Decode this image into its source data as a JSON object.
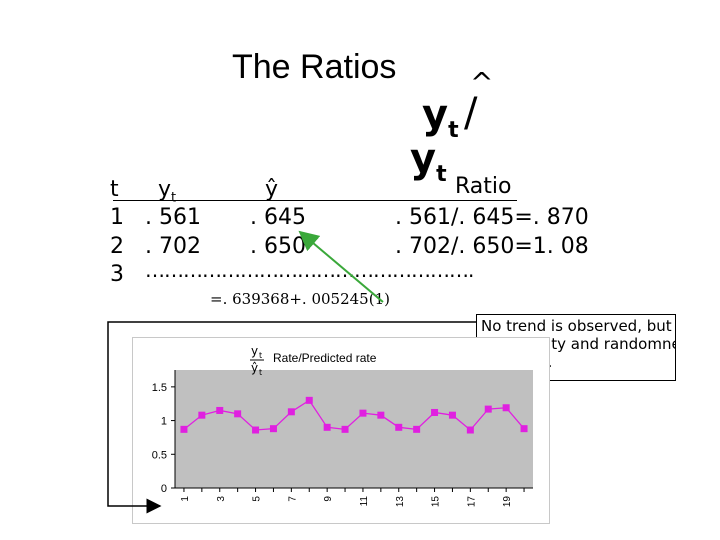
{
  "slide": {
    "title": "The Ratios",
    "ratio_symbol_caret": "^",
    "ratio_symbol_y1": "y",
    "ratio_symbol_t1": "t",
    "ratio_symbol_slash": "/",
    "ratio_symbol_y2": "y",
    "ratio_symbol_t2": "t",
    "ratio_label": "Ratio"
  },
  "table": {
    "headers": {
      "t": "t",
      "yt_base": "y",
      "yt_sub": "t",
      "yhat": "ŷ"
    },
    "rows": [
      {
        "t": "1",
        "yt": ". 561",
        "yhat": ". 645",
        "ratio": ". 561/. 645=. 870"
      },
      {
        "t": "2",
        "yt": ". 702",
        "yhat": ". 650",
        "ratio": ". 702/. 650=1. 08"
      },
      {
        "t": "3",
        "dots": "……………………………………………."
      }
    ]
  },
  "formula": "=. 639368+. 005245(1)",
  "note": {
    "line1": "No trend is observed, but",
    "line2": "seasonality and randomness",
    "line3": "still exist."
  },
  "chart_data": {
    "type": "line",
    "title": "Rate/Predicted rate",
    "title_symbol_y": "y",
    "title_symbol_t": "t",
    "title_symbol_yhat": "ŷ",
    "title_symbol_that": "t",
    "x": [
      1,
      2,
      3,
      4,
      5,
      6,
      7,
      8,
      9,
      10,
      11,
      12,
      13,
      14,
      15,
      16,
      17,
      18,
      19,
      20
    ],
    "xticks": [
      "1",
      "3",
      "5",
      "7",
      "9",
      "11",
      "13",
      "15",
      "17",
      "19"
    ],
    "yticks": [
      "0",
      "0.5",
      "1",
      "1.5"
    ],
    "ylim": [
      0,
      1.75
    ],
    "series": [
      {
        "values": [
          0.87,
          1.08,
          1.15,
          1.1,
          0.86,
          0.88,
          1.13,
          1.3,
          0.9,
          0.87,
          1.11,
          1.08,
          0.9,
          0.87,
          1.12,
          1.08,
          0.86,
          1.17,
          1.19,
          0.88
        ]
      }
    ],
    "colors": {
      "line": "#e020e0",
      "marker": "#e020e0",
      "plot_bg": "#c0c0c0"
    },
    "grid": false,
    "legend": "none"
  },
  "colors": {
    "arrow_green": "#3aa83a",
    "connector": "#000000"
  }
}
